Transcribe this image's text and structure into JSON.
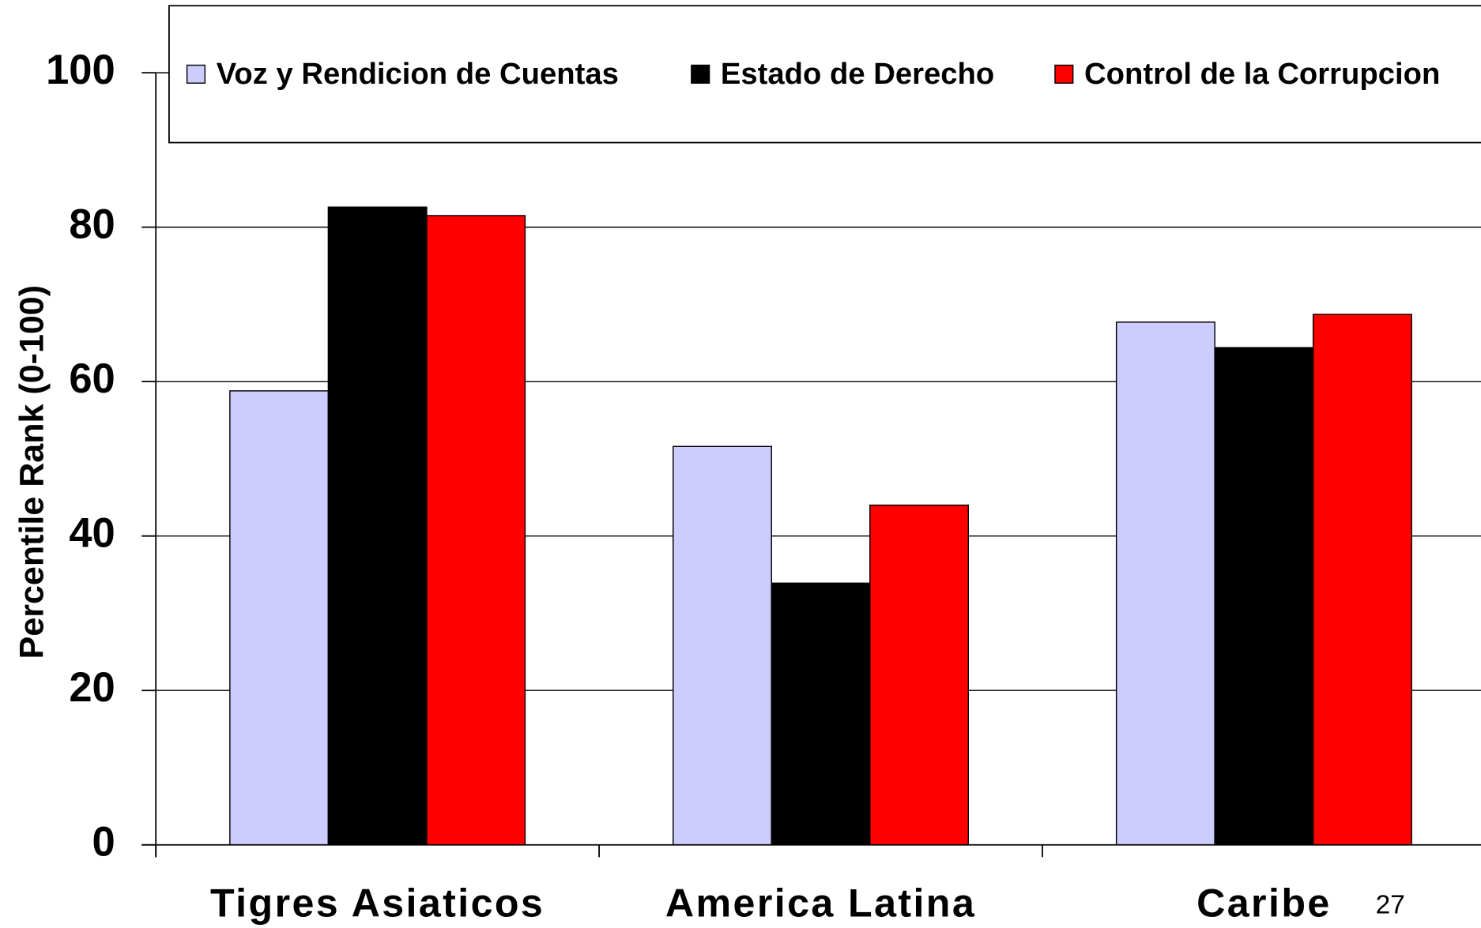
{
  "chart_data": {
    "type": "bar",
    "y_label": "Percentile Rank (0-100)",
    "categories": [
      "Tigres Asiaticos",
      "America Latina",
      "Caribe"
    ],
    "series": [
      {
        "name": "Voz y Rendicion de Cuentas",
        "color": "#ccccff",
        "values": [
          58.8,
          51.6,
          67.7
        ]
      },
      {
        "name": "Estado de Derecho",
        "color": "#000000",
        "values": [
          82.6,
          33.9,
          64.4
        ]
      },
      {
        "name": "Control de la Corrupcion",
        "color": "#ff0000",
        "values": [
          81.5,
          44.0,
          68.7
        ]
      }
    ],
    "ylim": [
      0,
      100
    ],
    "yticks": [
      0,
      20,
      40,
      60,
      80,
      100
    ],
    "grid": true,
    "legend": "top",
    "annotation": "27"
  }
}
